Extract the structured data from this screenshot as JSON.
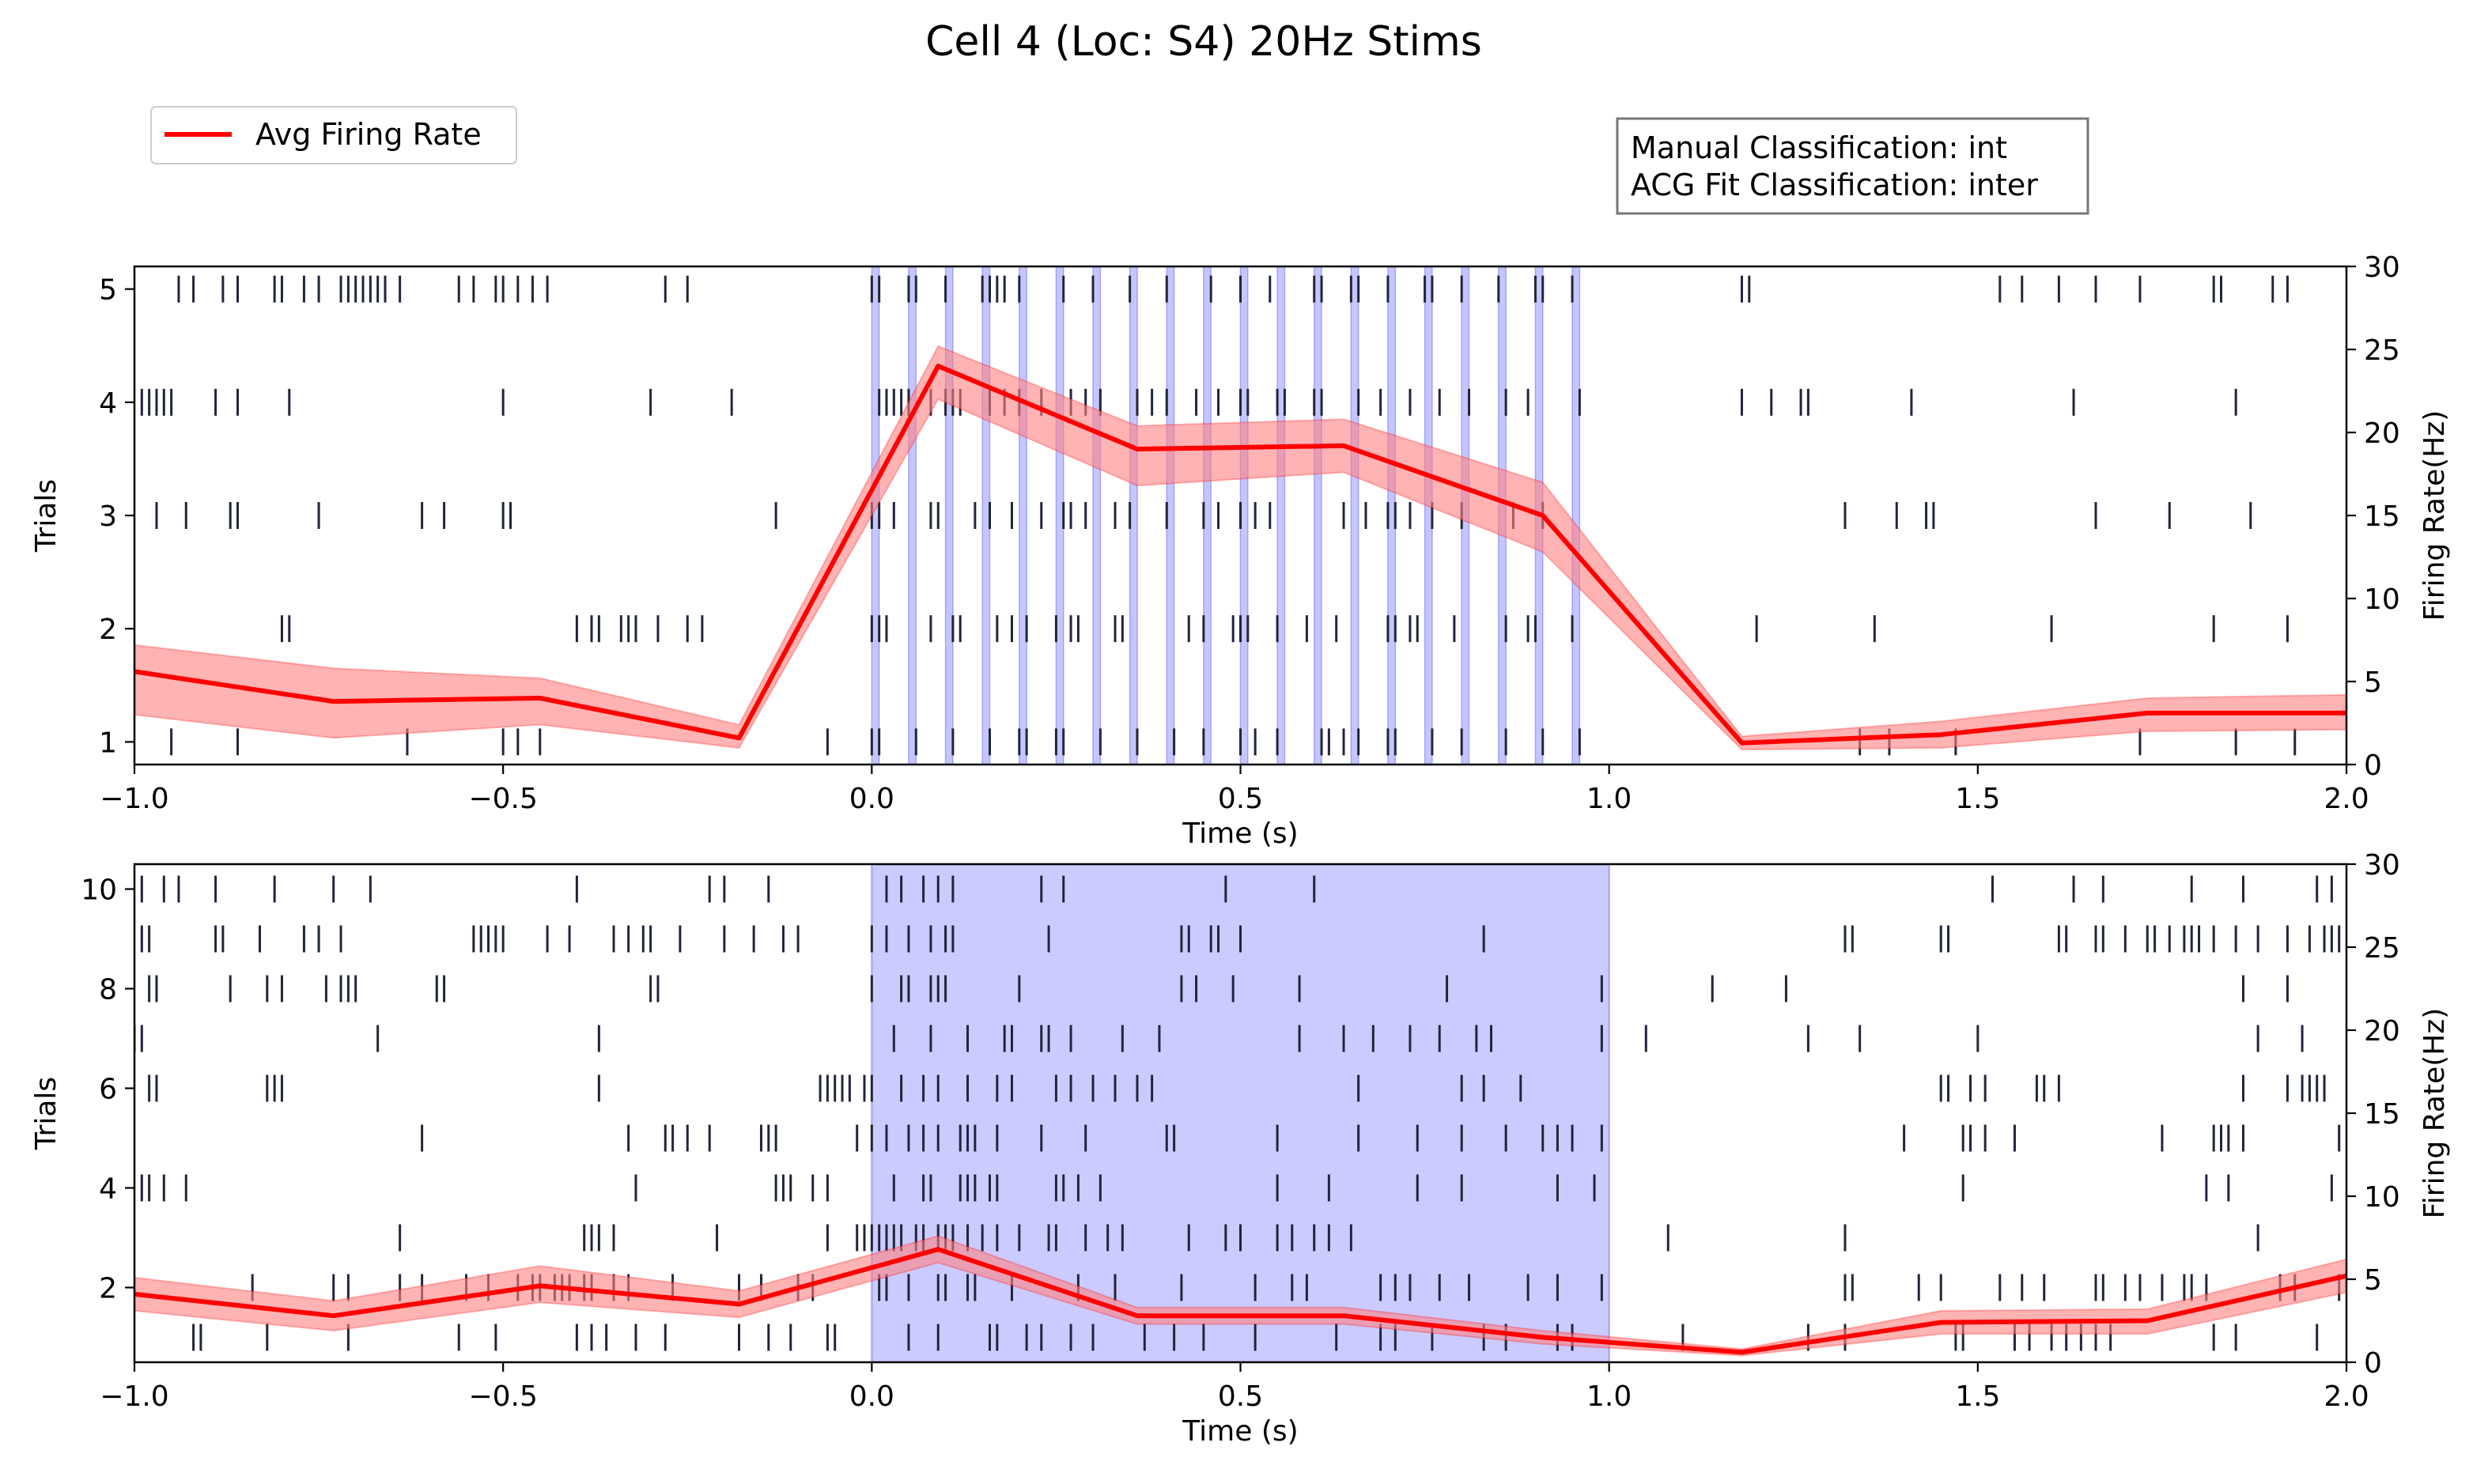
{
  "figure": {
    "title": "Cell 4 (Loc: S4) 20Hz Stims",
    "legend_label": "Avg Firing Rate",
    "info_lines": [
      "Manual Classification: int",
      "ACG Fit Classification: inter"
    ]
  },
  "colors": {
    "firing_line": "#ff0000",
    "firing_band": "#ff8080",
    "stim": "#7070ff",
    "spike": "#20263a"
  },
  "chart_data": [
    {
      "type": "raster-line",
      "id": "top",
      "xlabel": "Time (s)",
      "ylabel": "Trials",
      "ylabel_right": "Firing Rate(Hz)",
      "xlim": [
        -1.0,
        2.0
      ],
      "ylim": [
        0.8,
        5.2
      ],
      "ylim_right": [
        0,
        30
      ],
      "xticks": [
        -1.0,
        -0.5,
        0.0,
        0.5,
        1.0,
        1.5,
        2.0
      ],
      "xtick_labels": [
        "−1.0",
        "−0.5",
        "0.0",
        "0.5",
        "1.0",
        "1.5",
        "2.0"
      ],
      "yticks": [
        1,
        2,
        3,
        4,
        5
      ],
      "yticks_right": [
        0,
        5,
        10,
        15,
        20,
        25,
        30
      ],
      "stim_pulses": [
        0.0,
        0.05,
        0.1,
        0.15,
        0.2,
        0.25,
        0.3,
        0.35,
        0.4,
        0.45,
        0.5,
        0.55,
        0.6,
        0.65,
        0.7,
        0.75,
        0.8,
        0.85,
        0.9,
        0.95
      ],
      "stim_pulse_width": 0.01,
      "firing_rate": {
        "label": "Avg Firing Rate",
        "x": [
          -1.0,
          -0.73,
          -0.45,
          -0.18,
          0.09,
          0.36,
          0.64,
          0.91,
          1.18,
          1.45,
          1.73,
          2.0
        ],
        "y": [
          5.6,
          3.8,
          4.0,
          1.6,
          24.0,
          19.0,
          19.2,
          15.0,
          1.3,
          1.8,
          3.1,
          3.1
        ],
        "lower": [
          3.0,
          1.6,
          2.4,
          1.0,
          22.0,
          16.8,
          17.6,
          12.8,
          0.9,
          1.0,
          2.0,
          2.1
        ],
        "upper": [
          7.2,
          5.8,
          5.2,
          2.4,
          25.2,
          20.4,
          20.8,
          17.0,
          1.7,
          2.6,
          4.0,
          4.2
        ]
      },
      "spikes": [
        [
          -0.95,
          -0.86,
          -0.63,
          -0.5,
          -0.48,
          -0.45,
          -0.06,
          0.0,
          0.01,
          0.06,
          0.11,
          0.16,
          0.2,
          0.21,
          0.25,
          0.26,
          0.31,
          0.36,
          0.41,
          0.45,
          0.5,
          0.52,
          0.55,
          0.61,
          0.62,
          0.64,
          0.66,
          0.7,
          0.71,
          0.76,
          0.8,
          0.86,
          0.91,
          0.96,
          1.34,
          1.38,
          1.47,
          1.72,
          1.85,
          1.93
        ],
        [
          -0.8,
          -0.79,
          -0.4,
          -0.38,
          -0.37,
          -0.34,
          -0.33,
          -0.32,
          -0.29,
          -0.25,
          -0.23,
          0.0,
          0.01,
          0.02,
          0.08,
          0.11,
          0.12,
          0.17,
          0.19,
          0.21,
          0.25,
          0.27,
          0.28,
          0.33,
          0.34,
          0.43,
          0.45,
          0.49,
          0.5,
          0.51,
          0.55,
          0.59,
          0.63,
          0.7,
          0.71,
          0.73,
          0.74,
          0.79,
          0.86,
          0.89,
          0.9,
          0.95,
          1.2,
          1.36,
          1.6,
          1.82,
          1.92
        ],
        [
          -0.97,
          -0.93,
          -0.87,
          -0.86,
          -0.75,
          -0.61,
          -0.58,
          -0.5,
          -0.49,
          -0.13,
          0.0,
          0.01,
          0.03,
          0.08,
          0.09,
          0.14,
          0.16,
          0.19,
          0.23,
          0.26,
          0.27,
          0.29,
          0.33,
          0.35,
          0.4,
          0.45,
          0.47,
          0.5,
          0.52,
          0.54,
          0.64,
          0.67,
          0.7,
          0.71,
          0.73,
          0.76,
          0.8,
          0.87,
          0.91,
          1.32,
          1.39,
          1.43,
          1.44,
          1.66,
          1.76,
          1.87
        ],
        [
          -0.99,
          -0.98,
          -0.97,
          -0.96,
          -0.95,
          -0.89,
          -0.86,
          -0.79,
          -0.5,
          -0.3,
          -0.19,
          0.01,
          0.02,
          0.03,
          0.04,
          0.05,
          0.08,
          0.1,
          0.11,
          0.12,
          0.16,
          0.18,
          0.2,
          0.23,
          0.27,
          0.29,
          0.31,
          0.36,
          0.38,
          0.4,
          0.44,
          0.47,
          0.5,
          0.51,
          0.55,
          0.56,
          0.6,
          0.61,
          0.66,
          0.69,
          0.73,
          0.77,
          0.81,
          0.86,
          0.89,
          0.96,
          1.18,
          1.22,
          1.26,
          1.27,
          1.41,
          1.63,
          1.85
        ],
        [
          -0.94,
          -0.92,
          -0.88,
          -0.86,
          -0.81,
          -0.8,
          -0.77,
          -0.75,
          -0.72,
          -0.71,
          -0.7,
          -0.69,
          -0.68,
          -0.67,
          -0.66,
          -0.64,
          -0.56,
          -0.54,
          -0.51,
          -0.5,
          -0.48,
          -0.46,
          -0.44,
          -0.28,
          -0.25,
          0.0,
          0.01,
          0.05,
          0.06,
          0.1,
          0.15,
          0.16,
          0.17,
          0.18,
          0.2,
          0.26,
          0.3,
          0.35,
          0.4,
          0.46,
          0.5,
          0.54,
          0.6,
          0.61,
          0.65,
          0.66,
          0.7,
          0.75,
          0.76,
          0.8,
          0.85,
          0.9,
          0.91,
          0.95,
          1.18,
          1.19,
          1.53,
          1.56,
          1.61,
          1.66,
          1.72,
          1.82,
          1.83,
          1.9,
          1.92
        ]
      ]
    },
    {
      "type": "raster-line",
      "id": "bottom",
      "xlabel": "Time (s)",
      "ylabel": "Trials",
      "ylabel_right": "Firing Rate(Hz)",
      "xlim": [
        -1.0,
        2.0
      ],
      "ylim": [
        0.5,
        10.5
      ],
      "ylim_right": [
        0,
        30
      ],
      "xticks": [
        -1.0,
        -0.5,
        0.0,
        0.5,
        1.0,
        1.5,
        2.0
      ],
      "xtick_labels": [
        "−1.0",
        "−0.5",
        "0.0",
        "0.5",
        "1.0",
        "1.5",
        "2.0"
      ],
      "yticks": [
        2,
        4,
        6,
        8,
        10
      ],
      "yticks_right": [
        0,
        5,
        10,
        15,
        20,
        25,
        30
      ],
      "stim_window": [
        0.0,
        1.0
      ],
      "firing_rate": {
        "label": "Avg Firing Rate",
        "x": [
          -1.0,
          -0.73,
          -0.45,
          -0.18,
          0.09,
          0.36,
          0.64,
          0.91,
          1.18,
          1.45,
          1.73,
          2.0
        ],
        "y": [
          4.1,
          2.8,
          4.6,
          3.5,
          6.8,
          2.8,
          2.8,
          1.5,
          0.6,
          2.4,
          2.5,
          5.2
        ],
        "lower": [
          3.1,
          1.9,
          3.6,
          2.7,
          6.0,
          2.3,
          2.3,
          1.1,
          0.4,
          1.7,
          1.7,
          4.2
        ],
        "upper": [
          5.1,
          3.7,
          5.8,
          4.3,
          7.6,
          3.3,
          3.3,
          1.9,
          0.8,
          3.1,
          3.2,
          6.2
        ]
      },
      "spikes": [
        [
          -0.92,
          -0.91,
          -0.82,
          -0.71,
          -0.56,
          -0.51,
          -0.4,
          -0.38,
          -0.36,
          -0.32,
          -0.28,
          -0.18,
          -0.14,
          -0.11,
          -0.06,
          -0.05,
          0.05,
          0.09,
          0.16,
          0.17,
          0.21,
          0.23,
          0.27,
          0.3,
          0.37,
          0.41,
          0.45,
          0.52,
          0.63,
          0.69,
          0.71,
          0.76,
          0.83,
          0.86,
          0.93,
          0.95,
          1.1,
          1.27,
          1.32,
          1.47,
          1.48,
          1.55,
          1.57,
          1.6,
          1.62,
          1.64,
          1.66,
          1.68,
          1.82,
          1.85,
          1.96
        ],
        [
          -0.84,
          -0.73,
          -0.71,
          -0.64,
          -0.61,
          -0.55,
          -0.52,
          -0.48,
          -0.46,
          -0.45,
          -0.43,
          -0.42,
          -0.41,
          -0.39,
          -0.38,
          -0.35,
          -0.33,
          -0.27,
          -0.18,
          -0.15,
          -0.1,
          -0.08,
          0.01,
          0.02,
          0.05,
          0.09,
          0.1,
          0.13,
          0.14,
          0.19,
          0.28,
          0.33,
          0.42,
          0.52,
          0.57,
          0.59,
          0.69,
          0.71,
          0.73,
          0.77,
          0.81,
          0.89,
          0.93,
          0.99,
          1.32,
          1.33,
          1.42,
          1.45,
          1.53,
          1.56,
          1.59,
          1.66,
          1.67,
          1.7,
          1.72,
          1.75,
          1.78,
          1.79,
          1.81,
          1.91,
          1.93,
          1.99
        ],
        [
          -0.64,
          -0.39,
          -0.38,
          -0.37,
          -0.35,
          -0.21,
          -0.06,
          -0.02,
          -0.01,
          0.0,
          0.01,
          0.02,
          0.03,
          0.04,
          0.06,
          0.07,
          0.09,
          0.1,
          0.11,
          0.13,
          0.15,
          0.17,
          0.2,
          0.24,
          0.25,
          0.29,
          0.32,
          0.34,
          0.43,
          0.48,
          0.5,
          0.55,
          0.57,
          0.6,
          0.62,
          0.65,
          1.08,
          1.32,
          1.88
        ],
        [
          -0.99,
          -0.98,
          -0.96,
          -0.93,
          -0.32,
          -0.13,
          -0.12,
          -0.11,
          -0.08,
          -0.06,
          0.03,
          0.07,
          0.08,
          0.12,
          0.13,
          0.14,
          0.16,
          0.17,
          0.25,
          0.26,
          0.28,
          0.31,
          0.55,
          0.62,
          0.74,
          0.8,
          0.93,
          0.98,
          1.48,
          1.81,
          1.84,
          1.98
        ],
        [
          -0.61,
          -0.33,
          -0.28,
          -0.27,
          -0.25,
          -0.22,
          -0.15,
          -0.14,
          -0.13,
          -0.02,
          0.0,
          0.02,
          0.05,
          0.07,
          0.09,
          0.12,
          0.13,
          0.14,
          0.17,
          0.23,
          0.29,
          0.4,
          0.41,
          0.55,
          0.66,
          0.74,
          0.8,
          0.86,
          0.91,
          0.93,
          0.95,
          0.99,
          1.4,
          1.48,
          1.49,
          1.51,
          1.55,
          1.75,
          1.82,
          1.83,
          1.84,
          1.86,
          1.99
        ],
        [
          -0.98,
          -0.97,
          -0.82,
          -0.81,
          -0.8,
          -0.37,
          -0.07,
          -0.06,
          -0.05,
          -0.04,
          -0.03,
          -0.01,
          0.0,
          0.04,
          0.07,
          0.09,
          0.13,
          0.17,
          0.19,
          0.25,
          0.27,
          0.3,
          0.33,
          0.36,
          0.38,
          0.66,
          0.8,
          0.83,
          0.88,
          1.45,
          1.46,
          1.49,
          1.51,
          1.58,
          1.59,
          1.61,
          1.86,
          1.92,
          1.94,
          1.95,
          1.96,
          1.97
        ],
        [
          -1.0,
          -0.99,
          -0.67,
          -0.37,
          0.03,
          0.08,
          0.13,
          0.18,
          0.19,
          0.23,
          0.24,
          0.27,
          0.34,
          0.39,
          0.58,
          0.64,
          0.68,
          0.73,
          0.77,
          0.82,
          0.84,
          0.99,
          1.05,
          1.27,
          1.34,
          1.5,
          1.88,
          1.94
        ],
        [
          -0.98,
          -0.97,
          -0.87,
          -0.82,
          -0.8,
          -0.74,
          -0.72,
          -0.71,
          -0.7,
          -0.59,
          -0.58,
          -0.3,
          -0.29,
          0.0,
          0.04,
          0.05,
          0.08,
          0.09,
          0.1,
          0.2,
          0.42,
          0.44,
          0.49,
          0.58,
          0.78,
          0.99,
          1.14,
          1.24,
          1.86,
          1.92
        ],
        [
          -0.99,
          -0.98,
          -0.89,
          -0.88,
          -0.83,
          -0.77,
          -0.75,
          -0.72,
          -0.54,
          -0.53,
          -0.52,
          -0.51,
          -0.5,
          -0.44,
          -0.41,
          -0.35,
          -0.33,
          -0.31,
          -0.3,
          -0.26,
          -0.2,
          -0.16,
          -0.12,
          -0.1,
          0.0,
          0.02,
          0.05,
          0.08,
          0.1,
          0.11,
          0.24,
          0.42,
          0.43,
          0.46,
          0.47,
          0.5,
          0.83,
          1.32,
          1.33,
          1.45,
          1.46,
          1.61,
          1.62,
          1.66,
          1.67,
          1.7,
          1.73,
          1.74,
          1.76,
          1.78,
          1.79,
          1.8,
          1.82,
          1.85,
          1.88,
          1.92,
          1.95,
          1.97,
          1.98,
          1.99
        ],
        [
          -0.99,
          -0.96,
          -0.94,
          -0.89,
          -0.81,
          -0.73,
          -0.68,
          -0.4,
          -0.22,
          -0.2,
          -0.14,
          0.02,
          0.04,
          0.07,
          0.09,
          0.11,
          0.23,
          0.26,
          0.48,
          0.6,
          1.52,
          1.63,
          1.67,
          1.79,
          1.86,
          1.96,
          1.98
        ]
      ]
    }
  ]
}
